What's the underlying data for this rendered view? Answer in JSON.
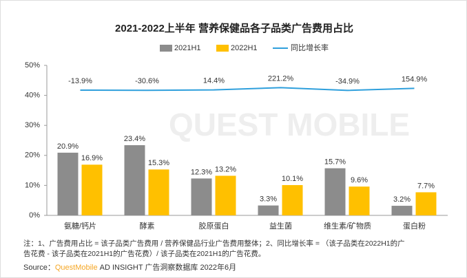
{
  "chart_data": {
    "type": "bar-line",
    "title": "2021-2022上半年 营养保健品各子品类广告费用占比",
    "categories": [
      "氨糖/钙片",
      "酵素",
      "胶原蛋白",
      "益生菌",
      "维生素/矿物质",
      "蛋白粉"
    ],
    "series": [
      {
        "name": "2021H1",
        "color": "#8c8c8c",
        "values": [
          20.9,
          23.4,
          12.3,
          3.3,
          15.7,
          3.2
        ],
        "value_labels": [
          "20.9%",
          "23.4%",
          "12.3%",
          "3.3%",
          "15.7%",
          "3.2%"
        ]
      },
      {
        "name": "2022H1",
        "color": "#ffc000",
        "values": [
          16.9,
          15.3,
          13.2,
          10.1,
          9.6,
          7.7
        ],
        "value_labels": [
          "16.9%",
          "15.3%",
          "13.2%",
          "10.1%",
          "9.6%",
          "7.7%"
        ]
      },
      {
        "name": "同比增长率",
        "color": "#2e9fdc",
        "type": "line",
        "axis": "y2",
        "values": [
          -13.9,
          -30.6,
          14.4,
          221.2,
          -34.9,
          154.9
        ],
        "value_labels": [
          "-13.9%",
          "-30.6%",
          "14.4%",
          "221.2%",
          "-34.9%",
          "154.9%"
        ]
      }
    ],
    "ylim": [
      0,
      50
    ],
    "yticks": [
      {
        "value": 0,
        "label": "0%"
      },
      {
        "value": 10,
        "label": "10%"
      },
      {
        "value": 20,
        "label": "20%"
      },
      {
        "value": 30,
        "label": "30%"
      },
      {
        "value": 40,
        "label": "40%"
      },
      {
        "value": 50,
        "label": "50%"
      }
    ],
    "y2lim": [
      -11700,
      2300
    ],
    "watermark": "QUEST MOBILE",
    "notes": [
      "注：1、广告费用占比 = 该子品类广告费用 / 营养保健品行业广告费用整体；2、同比增长率 = （该子品类在2022H1的广",
      "告花费 - 该子品类在2021H1的广告花费）/ 该子品类在2021H1的广告花费。"
    ],
    "source": {
      "label": "Source：",
      "brand": "QuestMobile",
      "text": "AD INSIGHT 广告洞察数据库 2022年6月"
    }
  }
}
